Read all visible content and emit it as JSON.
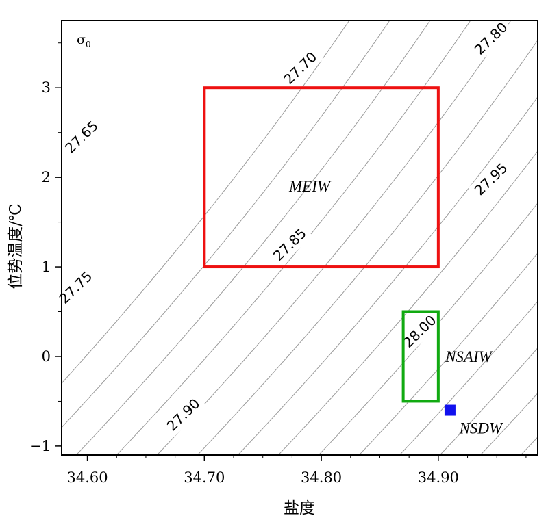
{
  "chart_data": {
    "type": "scatter",
    "title": "",
    "xlabel": "盐度",
    "ylabel": "位势温度/℃",
    "xlim": [
      34.578,
      34.985
    ],
    "ylim": [
      -1.1,
      3.75
    ],
    "xticks": [
      "34.60",
      "34.70",
      "34.80",
      "34.90"
    ],
    "xtick_values": [
      34.6,
      34.7,
      34.8,
      34.9
    ],
    "yticks": [
      "−1",
      "0",
      "1",
      "2",
      "3"
    ],
    "ytick_values": [
      -1,
      0,
      1,
      2,
      3
    ],
    "grid": false,
    "contour_variable": {
      "symbol": "σ",
      "subscript": "0"
    },
    "contour_labels": [
      {
        "text": "27.65",
        "s": 34.595,
        "t": 2.45
      },
      {
        "text": "27.70",
        "s": 34.782,
        "t": 3.22
      },
      {
        "text": "27.75",
        "s": 34.59,
        "t": 0.77
      },
      {
        "text": "27.80",
        "s": 34.945,
        "t": 3.55
      },
      {
        "text": "27.85",
        "s": 34.773,
        "t": 1.25
      },
      {
        "text": "27.90",
        "s": 34.682,
        "t": -0.65
      },
      {
        "text": "27.95",
        "s": 34.945,
        "t": 1.98
      },
      {
        "text": "28.00",
        "s": 34.884,
        "t": 0.28
      }
    ],
    "water_masses": [
      {
        "name": "MEIW",
        "shape": "rect",
        "color": "#ee1111",
        "s_range": [
          34.7,
          34.9
        ],
        "t_range": [
          1.0,
          3.0
        ],
        "label_at": [
          34.79,
          1.9
        ]
      },
      {
        "name": "NSAIW",
        "shape": "rect",
        "color": "#11aa11",
        "s_range": [
          34.87,
          34.9
        ],
        "t_range": [
          -0.5,
          0.5
        ],
        "label_at": [
          34.906,
          0.0
        ]
      },
      {
        "name": "NSDW",
        "shape": "point",
        "color": "#1111ee",
        "s": 34.91,
        "t": -0.6,
        "label_at": [
          34.918,
          -0.8
        ]
      }
    ]
  }
}
